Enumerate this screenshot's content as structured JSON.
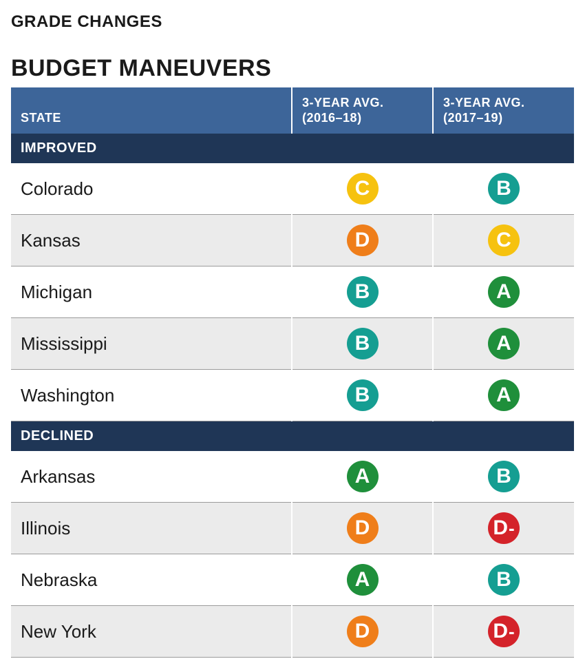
{
  "supertitle": "GRADE CHANGES",
  "title": "BUDGET MANEUVERS",
  "columns": {
    "state": "STATE",
    "period1": "3-YEAR AVG. (2016–18)",
    "period2": "3-YEAR AVG. (2017–19)"
  },
  "grade_colors": {
    "A": "#1f8f3b",
    "B": "#159e92",
    "C": "#f6c20f",
    "D": "#ef7e1a",
    "D-": "#d4232a"
  },
  "header_bg": "#3d6599",
  "section_bg": "#1f3656",
  "alt_row_bg": "#ebebeb",
  "sections": [
    {
      "label": "IMPROVED",
      "rows": [
        {
          "state": "Colorado",
          "g1": "C",
          "g2": "B"
        },
        {
          "state": "Kansas",
          "g1": "D",
          "g2": "C"
        },
        {
          "state": "Michigan",
          "g1": "B",
          "g2": "A"
        },
        {
          "state": "Mississippi",
          "g1": "B",
          "g2": "A"
        },
        {
          "state": "Washington",
          "g1": "B",
          "g2": "A"
        }
      ]
    },
    {
      "label": "DECLINED",
      "rows": [
        {
          "state": "Arkansas",
          "g1": "A",
          "g2": "B"
        },
        {
          "state": "Illinois",
          "g1": "D",
          "g2": "D-"
        },
        {
          "state": "Nebraska",
          "g1": "A",
          "g2": "B"
        },
        {
          "state": "New York",
          "g1": "D",
          "g2": "D-"
        }
      ]
    }
  ]
}
